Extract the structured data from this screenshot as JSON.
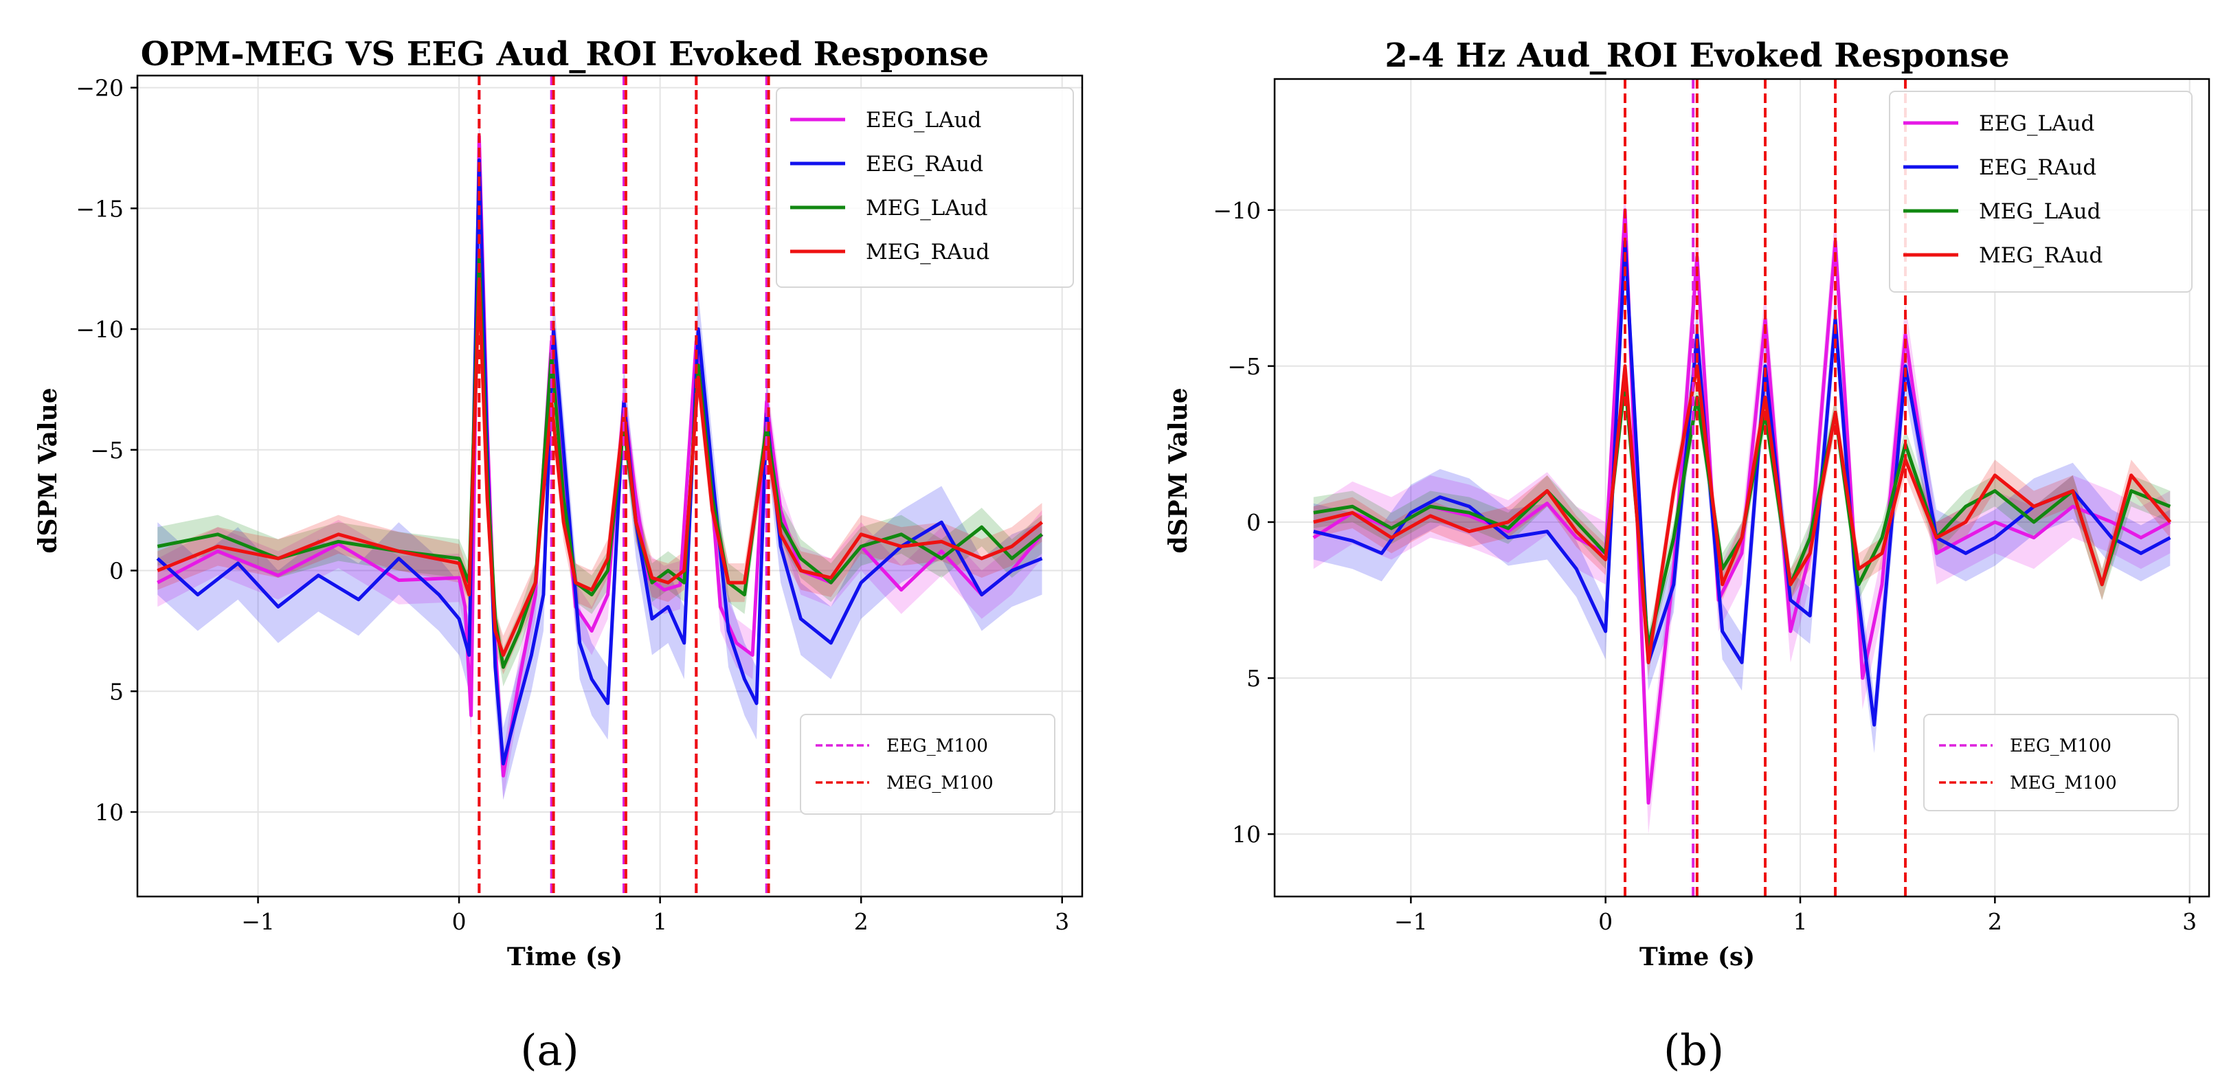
{
  "panel_labels": {
    "a": "(a)",
    "b": "(b)"
  },
  "chart_data": [
    {
      "type": "line",
      "title": "OPM-MEG VS EEG Aud_ROI Evoked Response",
      "xlabel": "Time (s)",
      "ylabel": "dSPM Value",
      "xlim": [
        -1.6,
        3.1
      ],
      "ylim": [
        -20.5,
        13.5
      ],
      "y_inverted": true,
      "xticks": [
        -1,
        0,
        1,
        2,
        3
      ],
      "xtick_labels": [
        "−1",
        "0",
        "1",
        "2",
        "3"
      ],
      "yticks": [
        -20,
        -15,
        -10,
        -5,
        0,
        5,
        10
      ],
      "ytick_labels": [
        "−20",
        "−15",
        "−10",
        "−5",
        "0",
        "5",
        "10"
      ],
      "grid": true,
      "legend_position": "top-right",
      "series": [
        {
          "name": "EEG_LAud",
          "color": "#e619e6",
          "x": [
            -1.5,
            -1.2,
            -0.9,
            -0.6,
            -0.3,
            0.0,
            0.03,
            0.06,
            0.1,
            0.14,
            0.18,
            0.22,
            0.3,
            0.38,
            0.46,
            0.52,
            0.58,
            0.66,
            0.74,
            0.82,
            0.88,
            0.94,
            1.02,
            1.1,
            1.18,
            1.25,
            1.3,
            1.38,
            1.46,
            1.53,
            1.6,
            1.7,
            1.85,
            2.0,
            2.2,
            2.4,
            2.6,
            2.75,
            2.9
          ],
          "y": [
            0.5,
            -0.8,
            0.2,
            -1.1,
            0.4,
            0.3,
            1.5,
            6.0,
            -18.0,
            -6.0,
            3.0,
            8.5,
            4.5,
            1.0,
            -9.5,
            -4.0,
            1.5,
            2.5,
            1.0,
            -7.0,
            -3.0,
            0.3,
            0.8,
            0.6,
            -9.5,
            -4.0,
            1.5,
            3.0,
            3.5,
            -7.0,
            -2.5,
            0.0,
            0.5,
            -1.0,
            0.8,
            -0.8,
            1.0,
            0.0,
            -1.5
          ]
        },
        {
          "name": "EEG_RAud",
          "color": "#1111ee",
          "x": [
            -1.5,
            -1.3,
            -1.1,
            -0.9,
            -0.7,
            -0.5,
            -0.3,
            -0.1,
            0.0,
            0.05,
            0.1,
            0.14,
            0.18,
            0.22,
            0.28,
            0.36,
            0.42,
            0.47,
            0.52,
            0.6,
            0.66,
            0.74,
            0.82,
            0.88,
            0.96,
            1.04,
            1.12,
            1.19,
            1.26,
            1.34,
            1.42,
            1.48,
            1.53,
            1.6,
            1.7,
            1.85,
            2.0,
            2.2,
            2.4,
            2.6,
            2.75,
            2.9
          ],
          "y": [
            -0.5,
            1.0,
            -0.3,
            1.5,
            0.2,
            1.2,
            -0.5,
            1.0,
            2.0,
            3.5,
            -17.0,
            -5.0,
            4.0,
            8.0,
            6.0,
            3.5,
            1.0,
            -10.0,
            -5.0,
            3.0,
            4.5,
            5.5,
            -7.0,
            -2.0,
            2.0,
            1.5,
            3.0,
            -10.0,
            -4.0,
            2.5,
            4.5,
            5.5,
            -6.5,
            -1.0,
            2.0,
            3.0,
            0.5,
            -1.0,
            -2.0,
            1.0,
            0.0,
            -0.5
          ]
        },
        {
          "name": "MEG_LAud",
          "color": "#118811",
          "x": [
            -1.5,
            -1.2,
            -0.9,
            -0.6,
            -0.3,
            0.0,
            0.05,
            0.1,
            0.14,
            0.18,
            0.22,
            0.3,
            0.38,
            0.46,
            0.52,
            0.58,
            0.66,
            0.74,
            0.82,
            0.88,
            0.96,
            1.04,
            1.12,
            1.19,
            1.26,
            1.34,
            1.42,
            1.53,
            1.6,
            1.7,
            1.85,
            2.0,
            2.2,
            2.4,
            2.6,
            2.75,
            2.9
          ],
          "y": [
            -1.0,
            -1.5,
            -0.5,
            -1.2,
            -0.8,
            -0.5,
            0.5,
            -13.0,
            -4.0,
            2.0,
            4.0,
            2.5,
            0.5,
            -9.0,
            -3.0,
            0.5,
            1.0,
            0.0,
            -6.0,
            -2.0,
            0.5,
            0.0,
            0.5,
            -8.5,
            -3.0,
            0.5,
            1.0,
            -6.0,
            -2.0,
            -0.5,
            0.5,
            -1.0,
            -1.5,
            -0.5,
            -1.8,
            -0.5,
            -1.5
          ]
        },
        {
          "name": "MEG_RAud",
          "color": "#ee1111",
          "x": [
            -1.5,
            -1.2,
            -0.9,
            -0.6,
            -0.3,
            0.0,
            0.05,
            0.1,
            0.14,
            0.18,
            0.22,
            0.3,
            0.38,
            0.46,
            0.52,
            0.58,
            0.66,
            0.74,
            0.82,
            0.88,
            0.96,
            1.04,
            1.12,
            1.19,
            1.26,
            1.34,
            1.42,
            1.53,
            1.6,
            1.7,
            1.85,
            2.0,
            2.2,
            2.4,
            2.6,
            2.75,
            2.9
          ],
          "y": [
            0.0,
            -1.0,
            -0.5,
            -1.5,
            -0.8,
            -0.3,
            1.0,
            -12.0,
            -3.0,
            2.5,
            3.5,
            2.0,
            0.5,
            -7.0,
            -2.0,
            0.5,
            0.8,
            -0.5,
            -6.5,
            -2.0,
            0.3,
            0.5,
            0.0,
            -8.0,
            -2.5,
            0.5,
            0.5,
            -5.5,
            -1.5,
            0.0,
            0.3,
            -1.5,
            -1.0,
            -1.2,
            -0.5,
            -1.0,
            -2.0
          ]
        }
      ],
      "bands": [
        {
          "series": "EEG_LAud",
          "color": "#e619e6",
          "width": 1.0
        },
        {
          "series": "EEG_RAud",
          "color": "#1111ee",
          "width": 1.5
        },
        {
          "series": "MEG_LAud",
          "color": "#118811",
          "width": 0.8
        },
        {
          "series": "MEG_RAud",
          "color": "#ee1111",
          "width": 0.8
        }
      ],
      "vlines": [
        {
          "name": "EEG_M100",
          "color": "#dd22dd",
          "x": [
            0.1,
            0.46,
            0.82,
            1.18,
            1.53
          ]
        },
        {
          "name": "MEG_M100",
          "color": "#ee1111",
          "x": [
            0.1,
            0.47,
            0.83,
            1.18,
            1.54
          ]
        }
      ]
    },
    {
      "type": "line",
      "title": "2-4 Hz Aud_ROI Evoked Response",
      "xlabel": "Time (s)",
      "ylabel": "dSPM Value",
      "xlim": [
        -1.7,
        3.1
      ],
      "ylim": [
        -14.2,
        12.0
      ],
      "y_inverted": true,
      "xticks": [
        -1,
        0,
        1,
        2,
        3
      ],
      "xtick_labels": [
        "−1",
        "0",
        "1",
        "2",
        "3"
      ],
      "yticks": [
        -10,
        -5,
        0,
        5,
        10
      ],
      "ytick_labels": [
        "−10",
        "−5",
        "0",
        "5",
        "10"
      ],
      "grid": true,
      "legend_position": "top-right",
      "series": [
        {
          "name": "EEG_LAud",
          "color": "#e619e6",
          "x": [
            -1.5,
            -1.3,
            -1.1,
            -0.9,
            -0.7,
            -0.5,
            -0.3,
            -0.15,
            0.0,
            0.1,
            0.22,
            0.35,
            0.47,
            0.58,
            0.7,
            0.82,
            0.95,
            1.05,
            1.18,
            1.32,
            1.42,
            1.54,
            1.7,
            1.85,
            2.0,
            2.2,
            2.4,
            2.6,
            2.75,
            2.9
          ],
          "y": [
            0.5,
            -0.3,
            0.2,
            -0.5,
            -0.2,
            0.3,
            -0.6,
            0.5,
            1.0,
            -10.0,
            9.0,
            1.5,
            -8.5,
            2.5,
            1.0,
            -6.5,
            3.5,
            1.0,
            -9.0,
            5.0,
            2.0,
            -6.0,
            1.0,
            0.5,
            0.0,
            0.5,
            -0.5,
            0.0,
            0.5,
            0.0
          ]
        },
        {
          "name": "EEG_RAud",
          "color": "#1111ee",
          "x": [
            -1.5,
            -1.3,
            -1.15,
            -1.0,
            -0.85,
            -0.7,
            -0.5,
            -0.3,
            -0.15,
            0.0,
            0.1,
            0.22,
            0.35,
            0.47,
            0.6,
            0.7,
            0.82,
            0.95,
            1.05,
            1.18,
            1.28,
            1.38,
            1.54,
            1.7,
            1.85,
            2.0,
            2.2,
            2.4,
            2.6,
            2.75,
            2.9
          ],
          "y": [
            0.3,
            0.6,
            1.0,
            -0.3,
            -0.8,
            -0.5,
            0.5,
            0.3,
            1.5,
            3.5,
            -9.0,
            4.5,
            2.0,
            -6.0,
            3.5,
            4.5,
            -5.0,
            2.5,
            3.0,
            -6.5,
            1.5,
            6.5,
            -5.0,
            0.5,
            1.0,
            0.5,
            -0.5,
            -1.0,
            0.5,
            1.0,
            0.5
          ]
        },
        {
          "name": "MEG_LAud",
          "color": "#118811",
          "x": [
            -1.5,
            -1.3,
            -1.1,
            -0.9,
            -0.7,
            -0.5,
            -0.3,
            -0.15,
            0.0,
            0.1,
            0.22,
            0.35,
            0.47,
            0.6,
            0.7,
            0.82,
            0.95,
            1.05,
            1.18,
            1.3,
            1.42,
            1.54,
            1.7,
            1.85,
            2.0,
            2.2,
            2.4,
            2.55,
            2.7,
            2.9
          ],
          "y": [
            -0.3,
            -0.5,
            0.2,
            -0.5,
            -0.3,
            0.2,
            -1.0,
            0.0,
            1.0,
            -4.5,
            4.0,
            0.5,
            -4.0,
            1.5,
            0.5,
            -3.5,
            2.0,
            0.5,
            -3.5,
            2.0,
            0.5,
            -2.5,
            0.5,
            -0.5,
            -1.0,
            0.0,
            -1.0,
            2.0,
            -1.0,
            -0.5
          ]
        },
        {
          "name": "MEG_RAud",
          "color": "#ee1111",
          "x": [
            -1.5,
            -1.3,
            -1.1,
            -0.9,
            -0.7,
            -0.5,
            -0.3,
            -0.15,
            0.0,
            0.1,
            0.22,
            0.35,
            0.47,
            0.6,
            0.7,
            0.82,
            0.95,
            1.05,
            1.18,
            1.3,
            1.42,
            1.54,
            1.7,
            1.85,
            2.0,
            2.2,
            2.4,
            2.55,
            2.7,
            2.9
          ],
          "y": [
            0.0,
            -0.3,
            0.5,
            -0.2,
            0.3,
            0.0,
            -1.0,
            0.3,
            1.2,
            -5.0,
            4.5,
            -1.0,
            -5.0,
            2.0,
            0.5,
            -4.0,
            2.0,
            1.0,
            -3.5,
            1.5,
            1.0,
            -2.0,
            0.5,
            0.0,
            -1.5,
            -0.5,
            -1.0,
            2.0,
            -1.5,
            0.0
          ]
        }
      ],
      "bands": [
        {
          "series": "EEG_LAud",
          "color": "#e619e6",
          "width": 1.0
        },
        {
          "series": "EEG_RAud",
          "color": "#1111ee",
          "width": 0.9
        },
        {
          "series": "MEG_LAud",
          "color": "#118811",
          "width": 0.5
        },
        {
          "series": "MEG_RAud",
          "color": "#ee1111",
          "width": 0.5
        }
      ],
      "vlines": [
        {
          "name": "EEG_M100",
          "color": "#dd22dd",
          "x": [
            0.1,
            0.45,
            0.82,
            1.18,
            1.54
          ]
        },
        {
          "name": "MEG_M100",
          "color": "#ee1111",
          "x": [
            0.1,
            0.47,
            0.82,
            1.18,
            1.54
          ]
        }
      ]
    }
  ]
}
